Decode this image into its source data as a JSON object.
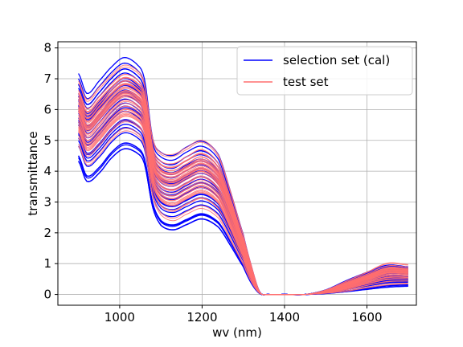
{
  "chart_data": {
    "type": "line",
    "title": "",
    "xlabel": "wv (nm)",
    "ylabel": "transmittance",
    "xlim": [
      850,
      1720
    ],
    "ylim": [
      -0.35,
      8.2
    ],
    "xticks": [
      1000,
      1200,
      1400,
      1600
    ],
    "yticks": [
      0,
      1,
      2,
      3,
      4,
      5,
      6,
      7,
      8
    ],
    "grid": true,
    "legend_position": "top-right",
    "colors": {
      "selection": "#0000ff",
      "test": "#ff6f6f",
      "grid": "#b0b0b0",
      "frame": "#000000"
    },
    "series": [
      {
        "name": "selection set (cal)",
        "color": "#0000ff",
        "curve_count": 30,
        "x": [
          900,
          920,
          950,
          980,
          1010,
          1040,
          1060,
          1080,
          1100,
          1130,
          1160,
          1200,
          1240,
          1270,
          1300,
          1320,
          1340,
          1360,
          1400,
          1450,
          1500,
          1550,
          1600,
          1650,
          1700
        ],
        "y_lower_envelope": [
          4.0,
          3.35,
          3.6,
          4.1,
          4.4,
          4.3,
          3.95,
          2.6,
          2.0,
          1.85,
          2.0,
          2.2,
          1.95,
          1.4,
          0.8,
          0.3,
          0.02,
          0.0,
          0.0,
          0.0,
          0.02,
          0.06,
          0.12,
          0.18,
          0.22
        ],
        "y_upper_envelope": [
          7.25,
          6.6,
          7.0,
          7.45,
          7.75,
          7.55,
          7.05,
          5.1,
          4.65,
          4.55,
          4.8,
          5.0,
          4.55,
          3.3,
          1.95,
          0.9,
          0.08,
          0.0,
          0.0,
          0.0,
          0.15,
          0.45,
          0.72,
          0.95,
          0.9
        ]
      },
      {
        "name": "test set",
        "color": "#ff6f6f",
        "curve_count": 45,
        "x": [
          900,
          920,
          950,
          980,
          1010,
          1040,
          1060,
          1080,
          1100,
          1130,
          1160,
          1200,
          1240,
          1270,
          1300,
          1320,
          1340,
          1360,
          1400,
          1450,
          1500,
          1550,
          1600,
          1650,
          1700
        ],
        "y_lower_envelope": [
          4.6,
          4.0,
          4.3,
          4.8,
          5.1,
          5.0,
          4.6,
          3.0,
          2.4,
          2.2,
          2.4,
          2.6,
          2.3,
          1.6,
          0.9,
          0.35,
          0.03,
          0.0,
          0.0,
          0.0,
          0.03,
          0.08,
          0.18,
          0.26,
          0.3
        ],
        "y_upper_envelope": [
          7.1,
          6.5,
          6.9,
          7.3,
          7.6,
          7.45,
          7.0,
          5.2,
          4.75,
          4.7,
          4.9,
          5.15,
          4.65,
          3.4,
          2.0,
          0.95,
          0.08,
          0.0,
          0.0,
          0.0,
          0.15,
          0.45,
          0.75,
          1.05,
          1.0
        ]
      }
    ]
  }
}
